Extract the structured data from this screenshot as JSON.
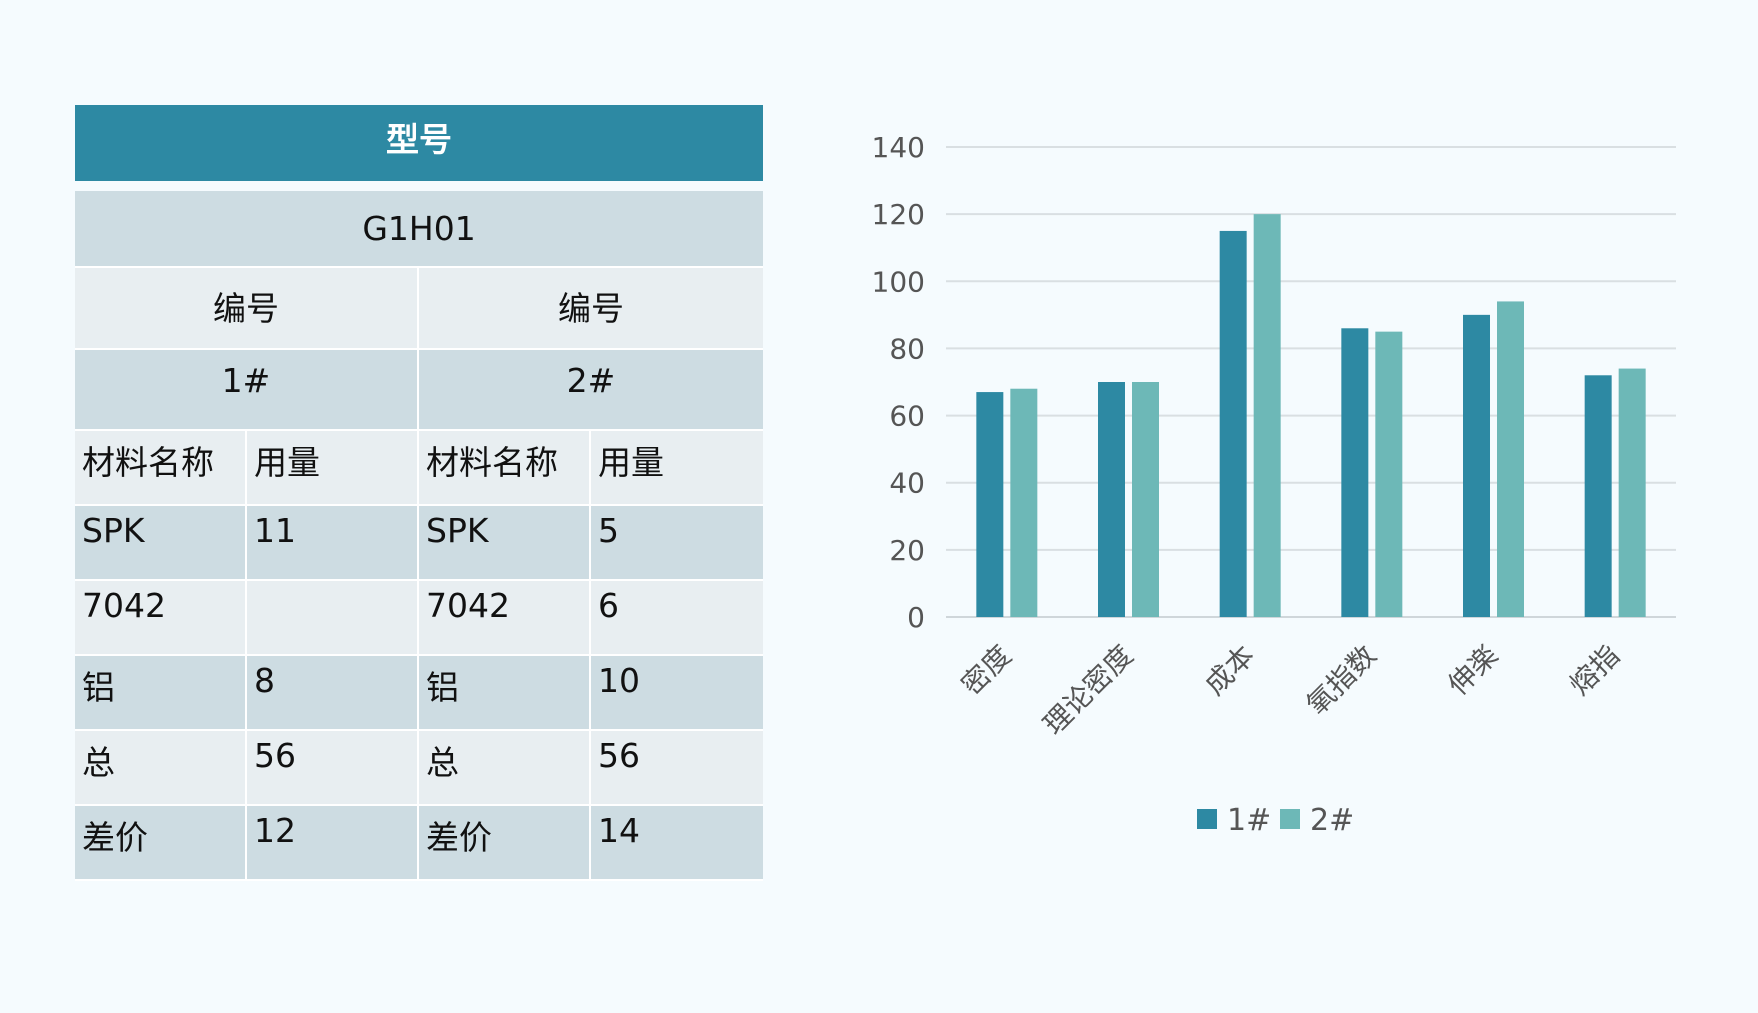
{
  "table": {
    "title": "型号",
    "model": "G1H01",
    "header_left": "编号",
    "header_right": "编号",
    "code_left": "1#",
    "code_right": "2#",
    "col_material": "材料名称",
    "col_amount": "用量",
    "rows": [
      {
        "m1": "SPK",
        "a1": "11",
        "m2": "SPK",
        "a2": "5"
      },
      {
        "m1": "7042",
        "a1": "",
        "m2": "7042",
        "a2": "6"
      },
      {
        "m1": "铝",
        "a1": "8",
        "m2": "铝",
        "a2": "10"
      },
      {
        "m1": "总",
        "a1": "56",
        "m2": "总",
        "a2": "56"
      },
      {
        "m1": "差价",
        "a1": "12",
        "m2": "差价",
        "a2": "14"
      }
    ]
  },
  "chart_data": {
    "type": "bar",
    "categories": [
      "密度",
      "理论密度",
      "成本",
      "氧指数",
      "伸楽",
      "熔指"
    ],
    "series": [
      {
        "name": "1#",
        "values": [
          67,
          70,
          115,
          86,
          90,
          72
        ],
        "color": "#2d89a3"
      },
      {
        "name": "2#",
        "values": [
          68,
          70,
          120,
          85,
          94,
          74
        ],
        "color": "#6db8b7"
      }
    ],
    "ylim": [
      0,
      140
    ],
    "yticks": [
      0,
      20,
      40,
      60,
      80,
      100,
      120,
      140
    ],
    "grid": true,
    "legend": "bottom"
  }
}
